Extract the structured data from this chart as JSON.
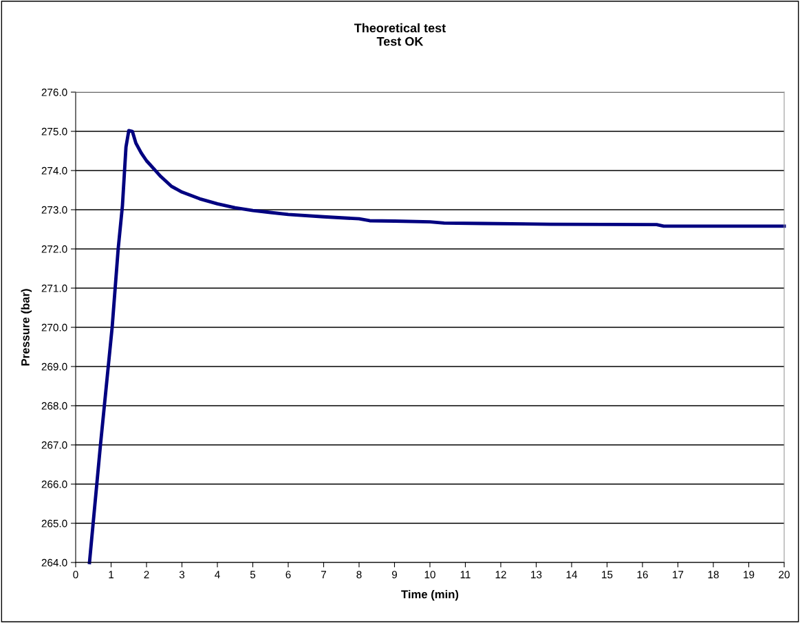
{
  "chart_data": {
    "type": "line",
    "title": "Theoretical test\nTest OK",
    "xlabel": "Time (min)",
    "ylabel": "Pressure (bar)",
    "series": [
      {
        "color": "#000080",
        "x": [
          0.39,
          0.7,
          1.03,
          1.2,
          1.32,
          1.42,
          1.5,
          1.6,
          1.7,
          1.85,
          2.0,
          2.2,
          2.4,
          2.7,
          3.0,
          3.5,
          4.0,
          4.5,
          5.0,
          5.5,
          6.0,
          7.0,
          8.0,
          8.3,
          9.0,
          10.0,
          10.4,
          11.5,
          13.4,
          16.4,
          16.6,
          20.0
        ],
        "values": [
          264.0,
          267.0,
          270.0,
          272.0,
          273.1,
          274.6,
          275.02,
          275.0,
          274.7,
          274.45,
          274.25,
          274.05,
          273.85,
          273.6,
          273.45,
          273.28,
          273.15,
          273.05,
          272.98,
          272.93,
          272.88,
          272.82,
          272.77,
          272.72,
          272.71,
          272.69,
          272.66,
          272.65,
          272.63,
          272.62,
          272.58,
          272.58
        ]
      }
    ],
    "xlim": [
      0,
      20
    ],
    "xticks": [
      0,
      1,
      2,
      3,
      4,
      5,
      6,
      7,
      8,
      9,
      10,
      11,
      12,
      13,
      14,
      15,
      16,
      17,
      18,
      19,
      20
    ],
    "ylim": [
      264,
      276
    ],
    "yticks": [
      {
        "value": 264,
        "label": "264.0"
      },
      {
        "value": 265,
        "label": "265.0"
      },
      {
        "value": 266,
        "label": "266.0"
      },
      {
        "value": 267,
        "label": "267.0"
      },
      {
        "value": 268,
        "label": "268.0"
      },
      {
        "value": 269,
        "label": "269.0"
      },
      {
        "value": 270,
        "label": "270.0"
      },
      {
        "value": 271,
        "label": "271.0"
      },
      {
        "value": 272,
        "label": "272.0"
      },
      {
        "value": 273,
        "label": "273.0"
      },
      {
        "value": 274,
        "label": "274.0"
      },
      {
        "value": 275,
        "label": "275.0"
      },
      {
        "value": 276,
        "label": "276.0"
      }
    ],
    "grid": "y",
    "line_style": "solid",
    "marker": "none"
  }
}
